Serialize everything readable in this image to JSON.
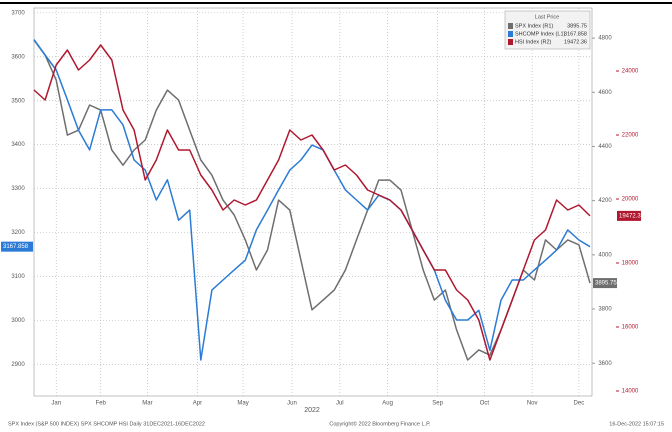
{
  "chart_data": {
    "type": "line",
    "footer_left": "SPX Index (S&P 500 INDEX) SPX SHCOMP HSI Daily 31DEC2021-16DEC2022",
    "footer_center": "Copyright© 2022 Bloomberg Finance L.P.",
    "footer_right": "16-Dec-2022 15:07:15",
    "x_label": "2022",
    "legend_title": "Last Price",
    "xlim": [
      0,
      50
    ],
    "xticks": [
      {
        "value": 2,
        "label": "Jan"
      },
      {
        "value": 6,
        "label": "Feb"
      },
      {
        "value": 10.2,
        "label": "Mar"
      },
      {
        "value": 14.7,
        "label": "Apr"
      },
      {
        "value": 18.8,
        "label": "May"
      },
      {
        "value": 23.2,
        "label": "Jun"
      },
      {
        "value": 27.5,
        "label": "Jul"
      },
      {
        "value": 31.8,
        "label": "Aug"
      },
      {
        "value": 36.3,
        "label": "Sep"
      },
      {
        "value": 40.5,
        "label": "Oct"
      },
      {
        "value": 44.8,
        "label": "Nov"
      },
      {
        "value": 49,
        "label": "Dec"
      }
    ],
    "ylim": [
      2828,
      3711
    ],
    "yticks": [
      2900,
      3000,
      3100,
      3200,
      3300,
      3400,
      3500,
      3600,
      3700
    ],
    "y2lim": [
      3479,
      4911
    ],
    "y2ticks": [
      3600,
      3800,
      4000,
      4200,
      4400,
      4600,
      4800
    ],
    "y3lim": [
      13844,
      25969
    ],
    "y3ticks": [
      14000,
      16000,
      18000,
      20000,
      22000,
      24000
    ],
    "grid": true,
    "series": [
      {
        "name": "SPX Index (R1)",
        "color": "#6e6e6e",
        "axis": "y2",
        "values": [
          4793,
          4737,
          4645,
          4442,
          4460,
          4553,
          4534,
          4387,
          4331,
          4387,
          4424,
          4534,
          4608,
          4571,
          4460,
          4350,
          4294,
          4202,
          4147,
          4055,
          3944,
          4018,
          4202,
          4165,
          3981,
          3797,
          3833,
          3870,
          3944,
          4055,
          4165,
          4276,
          4276,
          4239,
          4092,
          3944,
          3833,
          3870,
          3723,
          3612,
          3649,
          3630,
          3723,
          3833,
          3944,
          3907,
          4055,
          4018,
          4055,
          4037,
          3895.75
        ]
      },
      {
        "name": "SHCOMP Index (L1)",
        "color": "#2b7bd6",
        "axis": "y",
        "values": [
          3639,
          3604,
          3570,
          3502,
          3433,
          3388,
          3479,
          3479,
          3445,
          3365,
          3342,
          3274,
          3320,
          3228,
          3251,
          2910,
          3069,
          3092,
          3115,
          3137,
          3206,
          3251,
          3297,
          3342,
          3365,
          3399,
          3388,
          3342,
          3297,
          3274,
          3251,
          3285,
          3274,
          3251,
          3206,
          3160,
          3115,
          3046,
          3001,
          3001,
          3023,
          2932,
          3046,
          3092,
          3092,
          3115,
          3137,
          3160,
          3206,
          3183,
          3167.858
        ]
      },
      {
        "name": "HSI Index (R2)",
        "color": "#b0182f",
        "axis": "y3",
        "values": [
          23406,
          23094,
          24188,
          24656,
          24031,
          24344,
          24813,
          24344,
          22781,
          22156,
          20594,
          21219,
          22156,
          21531,
          21531,
          20750,
          20281,
          19656,
          19969,
          19813,
          19969,
          20594,
          21219,
          22156,
          21844,
          22000,
          21531,
          20906,
          21063,
          20750,
          20281,
          20125,
          19969,
          19656,
          19031,
          18406,
          17781,
          17781,
          17156,
          16844,
          16219,
          14969,
          15906,
          16844,
          17781,
          18719,
          19031,
          19969,
          19656,
          19813,
          19472.36
        ]
      }
    ]
  }
}
